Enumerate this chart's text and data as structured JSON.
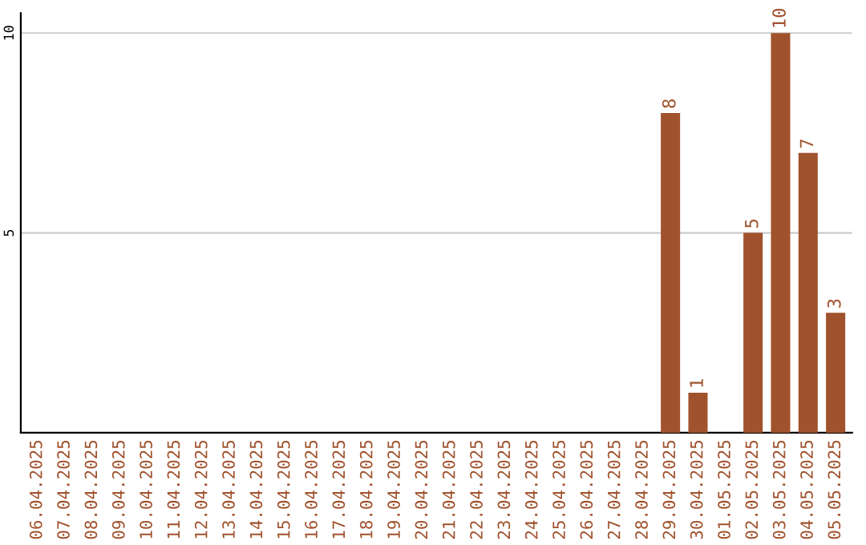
{
  "chart_data": {
    "type": "bar",
    "categories": [
      "06.04.2025",
      "07.04.2025",
      "08.04.2025",
      "09.04.2025",
      "10.04.2025",
      "11.04.2025",
      "12.04.2025",
      "13.04.2025",
      "14.04.2025",
      "15.04.2025",
      "16.04.2025",
      "17.04.2025",
      "18.04.2025",
      "19.04.2025",
      "20.04.2025",
      "21.04.2025",
      "22.04.2025",
      "23.04.2025",
      "24.04.2025",
      "25.04.2025",
      "26.04.2025",
      "27.04.2025",
      "28.04.2025",
      "29.04.2025",
      "30.04.2025",
      "01.05.2025",
      "02.05.2025",
      "03.05.2025",
      "04.05.2025",
      "05.05.2025"
    ],
    "values": [
      0,
      0,
      0,
      0,
      0,
      0,
      0,
      0,
      0,
      0,
      0,
      0,
      0,
      0,
      0,
      0,
      0,
      0,
      0,
      0,
      0,
      0,
      0,
      8,
      1,
      0,
      5,
      10,
      7,
      3
    ],
    "value_labels": [
      null,
      null,
      null,
      null,
      null,
      null,
      null,
      null,
      null,
      null,
      null,
      null,
      null,
      null,
      null,
      null,
      null,
      null,
      null,
      null,
      null,
      null,
      null,
      "8",
      "1",
      null,
      "5",
      "10",
      "7",
      "3"
    ],
    "color": "#a0522d",
    "ylim": [
      0,
      10.5
    ],
    "yticks": [
      5,
      10
    ],
    "grid": "y"
  }
}
